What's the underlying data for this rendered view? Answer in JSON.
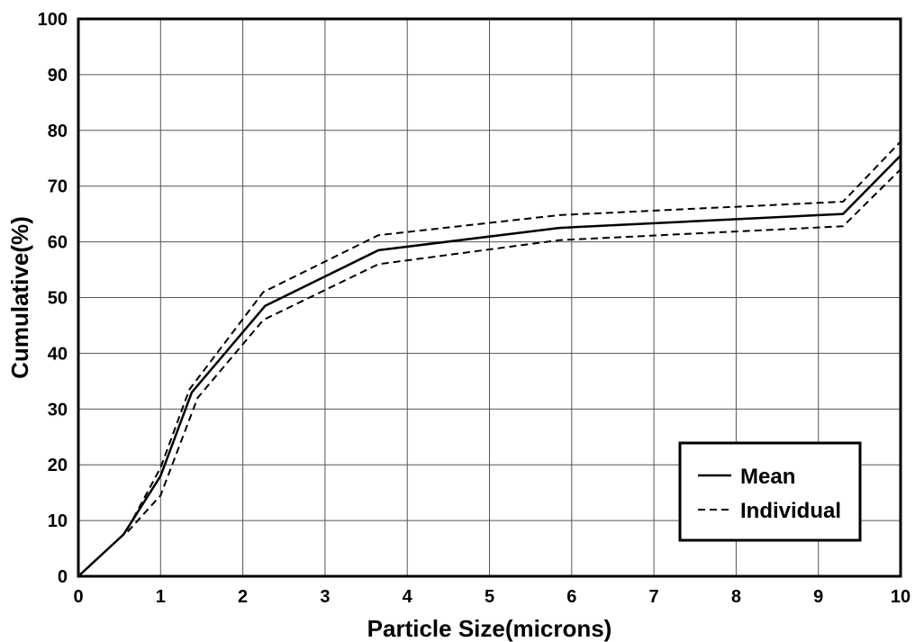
{
  "chart_data": {
    "type": "line",
    "xlabel": "Particle Size(microns)",
    "ylabel": "Cumulative(%)",
    "xlim": [
      0,
      10
    ],
    "ylim": [
      0,
      100
    ],
    "x_ticks": [
      "0",
      "1",
      "2",
      "3",
      "4",
      "5",
      "6",
      "7",
      "8",
      "9",
      "10"
    ],
    "y_ticks": [
      "0",
      "10",
      "20",
      "30",
      "40",
      "50",
      "60",
      "70",
      "80",
      "90",
      "100"
    ],
    "grid": true,
    "legend": {
      "placement": "bottom-right",
      "entries": [
        "Mean",
        "Individual"
      ]
    },
    "series": [
      {
        "name": "Mean",
        "style": "solid",
        "color": "#000000",
        "points": [
          [
            0,
            0
          ],
          [
            0.55,
            7.5
          ],
          [
            1.0,
            18
          ],
          [
            1.38,
            33
          ],
          [
            2.27,
            48.5
          ],
          [
            3.65,
            58.5
          ],
          [
            5.85,
            62.5
          ],
          [
            9.3,
            65
          ],
          [
            10,
            75.5
          ]
        ]
      },
      {
        "name": "Individual",
        "style": "dashed",
        "color": "#000000",
        "points": [
          [
            0.6,
            8.5
          ],
          [
            1.0,
            19.5
          ],
          [
            1.35,
            33.5
          ],
          [
            2.25,
            51
          ],
          [
            3.65,
            61.2
          ],
          [
            5.85,
            64.8
          ],
          [
            9.3,
            67.2
          ],
          [
            10,
            78
          ]
        ]
      },
      {
        "name": "Individual",
        "style": "dashed",
        "color": "#000000",
        "points": [
          [
            0.6,
            8
          ],
          [
            1.0,
            14.5
          ],
          [
            1.45,
            32
          ],
          [
            2.25,
            46
          ],
          [
            3.65,
            56
          ],
          [
            5.85,
            60.3
          ],
          [
            9.3,
            62.8
          ],
          [
            10,
            73
          ]
        ]
      }
    ]
  }
}
